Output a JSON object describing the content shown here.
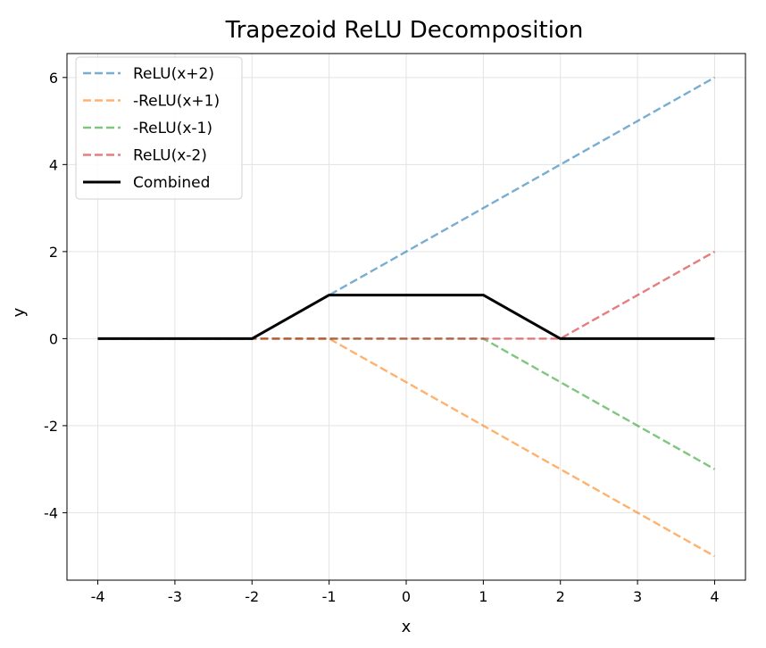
{
  "chart_data": {
    "type": "line",
    "title": "Trapezoid ReLU Decomposition",
    "xlabel": "x",
    "ylabel": "y",
    "xlim": [
      -4.4,
      4.4
    ],
    "ylim": [
      -5.55,
      6.55
    ],
    "xticks": [
      -4,
      -3,
      -2,
      -1,
      0,
      1,
      2,
      3,
      4
    ],
    "yticks": [
      -4,
      -2,
      0,
      2,
      4,
      6
    ],
    "grid": true,
    "legend_position": "top-left",
    "series": [
      {
        "name": "ReLU(x+2)",
        "color": "#1f77b4",
        "style": "dashed",
        "opacity": 0.6,
        "x": [
          -4,
          -2,
          4
        ],
        "y": [
          0,
          0,
          6
        ]
      },
      {
        "name": "-ReLU(x+1)",
        "color": "#ff7f0e",
        "style": "dashed",
        "opacity": 0.6,
        "x": [
          -4,
          -1,
          4
        ],
        "y": [
          0,
          0,
          -5
        ]
      },
      {
        "name": "-ReLU(x-1)",
        "color": "#2ca02c",
        "style": "dashed",
        "opacity": 0.6,
        "x": [
          -4,
          1,
          4
        ],
        "y": [
          0,
          0,
          -3
        ]
      },
      {
        "name": "ReLU(x-2)",
        "color": "#d62728",
        "style": "dashed",
        "opacity": 0.6,
        "x": [
          -4,
          2,
          4
        ],
        "y": [
          0,
          0,
          2
        ]
      },
      {
        "name": "Combined",
        "color": "#000000",
        "style": "solid",
        "opacity": 1,
        "x": [
          -4,
          -2,
          -1,
          1,
          2,
          4
        ],
        "y": [
          0,
          0,
          1,
          1,
          0,
          0
        ]
      }
    ]
  }
}
